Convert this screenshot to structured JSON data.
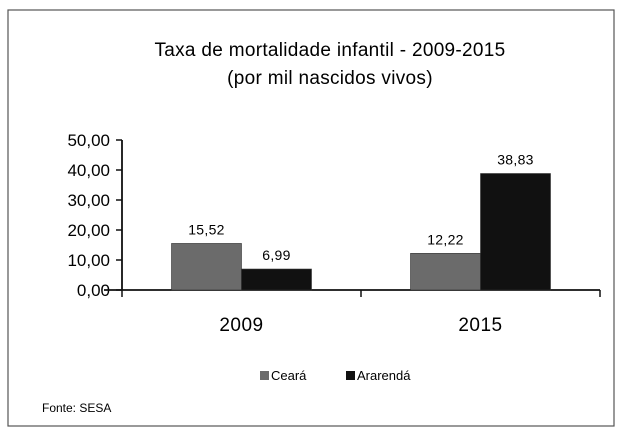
{
  "chart_data": {
    "type": "bar",
    "title": "Taxa de mortalidade infantil - 2009-2015",
    "subtitle": "(por mil nascidos vivos)",
    "categories": [
      "2009",
      "2015"
    ],
    "series": [
      {
        "name": "Ceará",
        "values": [
          15.52,
          12.22
        ],
        "labels": [
          "15,52",
          "12,22"
        ],
        "color": "#6b6b6b"
      },
      {
        "name": "Ararendá",
        "values": [
          6.99,
          38.83
        ],
        "labels": [
          "6,99",
          "38,83"
        ],
        "color": "#111111"
      }
    ],
    "ylim": [
      0,
      50
    ],
    "yticks": [
      "0,00",
      "10,00",
      "20,00",
      "30,00",
      "40,00",
      "50,00"
    ],
    "xlabel": "",
    "ylabel": "",
    "grid": false,
    "legend_position": "bottom-center",
    "source": "Fonte: SESA"
  }
}
